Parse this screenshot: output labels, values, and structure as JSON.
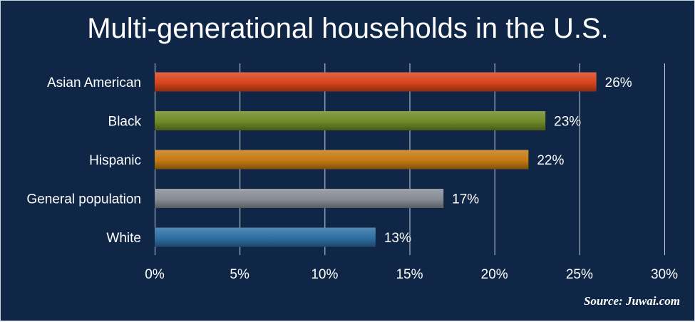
{
  "chart_data": {
    "type": "bar",
    "orientation": "horizontal",
    "title": "Multi-generational households in the U.S.",
    "categories": [
      "Asian American",
      "Black",
      "Hispanic",
      "General population",
      "White"
    ],
    "values": [
      26,
      23,
      22,
      17,
      13
    ],
    "value_labels": [
      "26%",
      "23%",
      "22%",
      "17%",
      "13%"
    ],
    "bar_colors": [
      "#d8431c",
      "#6e8a25",
      "#c57a13",
      "#878c95",
      "#2e6ea3"
    ],
    "xlim": [
      0,
      30
    ],
    "x_ticks": [
      0,
      5,
      10,
      15,
      20,
      25,
      30
    ],
    "x_tick_labels": [
      "0%",
      "5%",
      "10%",
      "15%",
      "20%",
      "25%",
      "30%"
    ],
    "grid": true,
    "source": "Source: Juwai.com"
  },
  "colors": {
    "background": "#0f2646",
    "text": "#ffffff",
    "grid": "#c9d2de"
  }
}
